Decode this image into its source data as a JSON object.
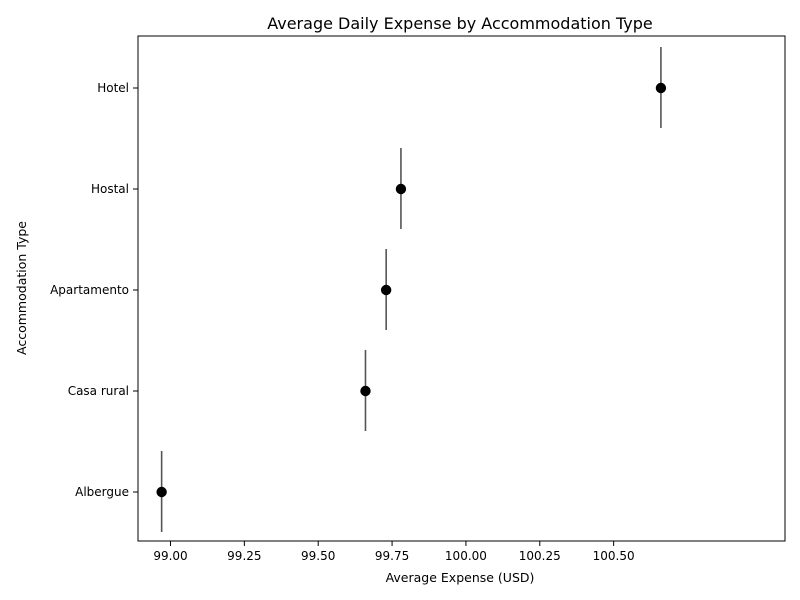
{
  "chart_data": {
    "type": "scatter",
    "title": "Average Daily Expense by Accommodation Type",
    "xlabel": "Average Expense (USD)",
    "ylabel": "Accommodation Type",
    "xlim": [
      98.89,
      101.08
    ],
    "xticks": [
      "99.00",
      "99.25",
      "99.50",
      "99.75",
      "100.00",
      "100.25",
      "100.50"
    ],
    "categories": [
      "Hotel",
      "Hostal",
      "Apartamento",
      "Casa rural",
      "Albergue"
    ],
    "values": [
      100.66,
      99.78,
      99.73,
      99.66,
      98.97
    ],
    "grid": false,
    "legend": "none",
    "colors": {
      "point": "#000000",
      "errorbar": "#555555",
      "axes": "#000000"
    }
  }
}
